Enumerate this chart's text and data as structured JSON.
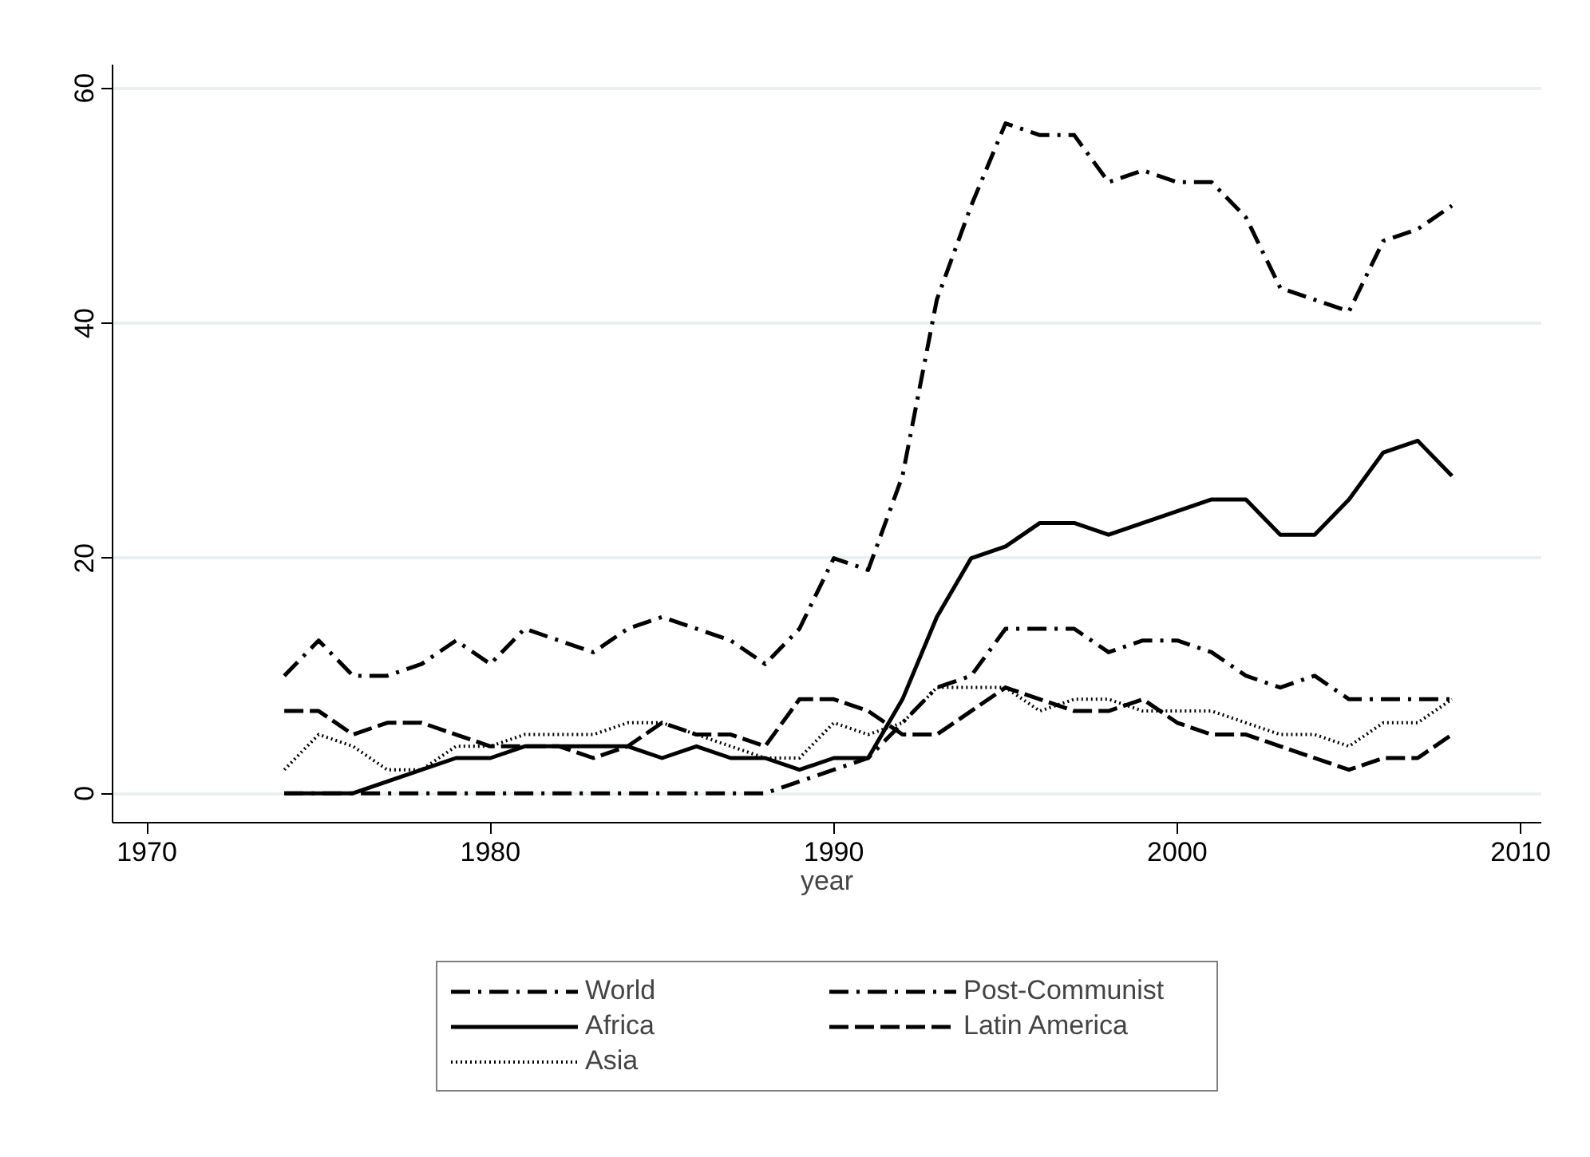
{
  "chart_data": {
    "type": "line",
    "xlabel": "year",
    "x": [
      1974,
      1975,
      1976,
      1977,
      1978,
      1979,
      1980,
      1981,
      1982,
      1983,
      1984,
      1985,
      1986,
      1987,
      1988,
      1989,
      1990,
      1991,
      1992,
      1993,
      1994,
      1995,
      1996,
      1997,
      1998,
      1999,
      2000,
      2001,
      2002,
      2003,
      2004,
      2005,
      2006,
      2007,
      2008
    ],
    "xlim": [
      1969,
      2010.6
    ],
    "xticks": [
      1970,
      1980,
      1990,
      2000,
      2010
    ],
    "ylim": [
      -2.5,
      62
    ],
    "yticks": [
      0,
      20,
      40,
      60
    ],
    "grid": "y",
    "legend": "bottom",
    "marker": "none",
    "series": [
      {
        "name": "World",
        "color": "#000000",
        "line_style": "dashdot",
        "values": [
          10,
          13,
          10,
          10,
          11,
          13,
          11,
          14,
          13,
          12,
          14,
          15,
          14,
          13,
          11,
          14,
          20,
          19,
          27,
          42,
          50,
          57,
          56,
          56,
          52,
          53,
          52,
          52,
          49,
          43,
          42,
          41,
          47,
          48,
          50
        ]
      },
      {
        "name": "Africa",
        "color": "#000000",
        "line_style": "solid",
        "values": [
          0,
          0,
          0,
          1,
          2,
          3,
          3,
          4,
          4,
          4,
          4,
          3,
          4,
          3,
          3,
          2,
          3,
          3,
          8,
          15,
          20,
          21,
          23,
          23,
          22,
          23,
          24,
          25,
          25,
          22,
          22,
          25,
          29,
          30,
          27
        ]
      },
      {
        "name": "Asia",
        "color": "#000000",
        "line_style": "dotted",
        "values": [
          2,
          5,
          4,
          2,
          2,
          4,
          4,
          5,
          5,
          5,
          6,
          6,
          5,
          4,
          3,
          3,
          6,
          5,
          6,
          9,
          9,
          9,
          7,
          8,
          8,
          7,
          7,
          7,
          6,
          5,
          5,
          4,
          6,
          6,
          8
        ]
      },
      {
        "name": "Post-Communist",
        "color": "#000000",
        "line_style": "dashdot",
        "values": [
          0,
          0,
          0,
          0,
          0,
          0,
          0,
          0,
          0,
          0,
          0,
          0,
          0,
          0,
          0,
          1,
          2,
          3,
          6,
          9,
          10,
          14,
          14,
          14,
          12,
          13,
          13,
          12,
          10,
          9,
          10,
          8,
          8,
          8,
          8
        ]
      },
      {
        "name": "Latin America",
        "color": "#000000",
        "line_style": "dashed",
        "values": [
          7,
          7,
          5,
          6,
          6,
          5,
          4,
          4,
          4,
          3,
          4,
          6,
          5,
          5,
          4,
          8,
          8,
          7,
          5,
          5,
          7,
          9,
          8,
          7,
          7,
          8,
          6,
          5,
          5,
          4,
          3,
          2,
          3,
          3,
          5
        ]
      }
    ]
  }
}
